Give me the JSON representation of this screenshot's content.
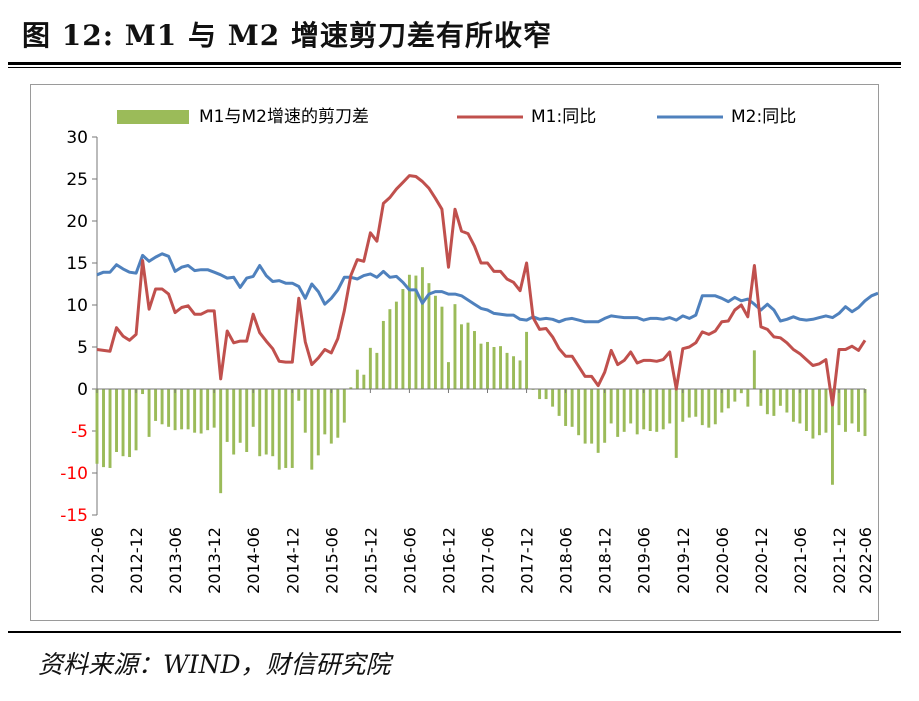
{
  "figure": {
    "title": "图 12:  M1 与 M2 增速剪刀差有所收窄",
    "source": "资料来源：WIND，财信研究院"
  },
  "colors": {
    "m1": "#c0504d",
    "m2": "#4f81bd",
    "gap": "#9bbb59",
    "axis": "#777777",
    "negative_tick": "#ff0000"
  },
  "chart_data": {
    "type": "bar+line",
    "title": "",
    "xlabel": "",
    "ylabel": "",
    "ylim": [
      -15,
      30
    ],
    "yticks": [
      30,
      25,
      20,
      15,
      10,
      5,
      0,
      -5,
      -10,
      -15
    ],
    "legend": "top",
    "legend_labels": {
      "gap": "M1与M2增速的剪刀差",
      "m1": "M1:同比",
      "m2": "M2:同比"
    },
    "x_start": "2012-06",
    "x_tick_labels": [
      "2012-06",
      "2012-12",
      "2013-06",
      "2013-12",
      "2014-06",
      "2014-12",
      "2015-06",
      "2015-12",
      "2016-06",
      "2016-12",
      "2017-06",
      "2017-12",
      "2018-06",
      "2018-12",
      "2019-06",
      "2019-12",
      "2020-06",
      "2020-12",
      "2021-06",
      "2021-12",
      "2022-06"
    ],
    "m1": [
      4.7,
      4.6,
      4.5,
      7.3,
      6.3,
      5.8,
      6.5,
      15.3,
      9.5,
      11.9,
      11.9,
      11.3,
      9.1,
      9.7,
      9.9,
      8.9,
      8.9,
      9.3,
      9.3,
      1.2,
      6.9,
      5.5,
      5.7,
      5.7,
      8.9,
      6.7,
      5.7,
      4.8,
      3.3,
      3.2,
      3.2,
      10.8,
      5.6,
      2.9,
      3.7,
      4.7,
      4.3,
      6.0,
      9.3,
      13.5,
      15.4,
      15.2,
      18.6,
      17.6,
      22.1,
      22.8,
      23.8,
      24.6,
      25.4,
      25.3,
      24.7,
      23.9,
      22.7,
      21.4,
      14.5,
      21.4,
      18.8,
      18.5,
      17.0,
      15.0,
      15.0,
      14.0,
      14.0,
      13.1,
      12.7,
      11.7,
      15.0,
      8.5,
      7.1,
      7.2,
      6.2,
      4.8,
      3.9,
      3.9,
      2.7,
      1.5,
      1.5,
      0.4,
      2.0,
      4.6,
      2.9,
      3.4,
      4.4,
      3.1,
      3.4,
      3.4,
      3.3,
      3.5,
      4.4,
      0.0,
      4.8,
      5.0,
      5.5,
      6.8,
      6.5,
      6.9,
      8.0,
      8.1,
      9.4,
      10.0,
      8.6,
      14.7,
      7.4,
      7.1,
      6.2,
      6.1,
      5.5,
      4.7,
      4.2,
      3.5,
      2.8,
      3.0,
      3.5,
      -1.9,
      4.7,
      4.7,
      5.1,
      4.6,
      5.8
    ],
    "m2": [
      13.6,
      13.9,
      13.9,
      14.8,
      14.3,
      13.9,
      13.8,
      15.9,
      15.2,
      15.7,
      16.1,
      15.8,
      14.0,
      14.5,
      14.7,
      14.1,
      14.2,
      14.2,
      13.9,
      13.6,
      13.2,
      13.3,
      12.1,
      13.2,
      13.4,
      14.7,
      13.5,
      12.8,
      12.9,
      12.6,
      12.6,
      12.2,
      10.8,
      12.5,
      11.6,
      10.1,
      10.8,
      11.8,
      13.3,
      13.3,
      13.1,
      13.5,
      13.7,
      13.3,
      14.0,
      13.3,
      13.4,
      12.7,
      11.8,
      11.8,
      10.2,
      11.3,
      11.6,
      11.6,
      11.3,
      11.3,
      11.1,
      10.6,
      10.1,
      9.6,
      9.4,
      9.0,
      8.9,
      8.8,
      8.8,
      8.3,
      8.2,
      8.6,
      8.3,
      8.4,
      8.3,
      8.0,
      8.3,
      8.4,
      8.2,
      8.0,
      8.0,
      8.0,
      8.4,
      8.7,
      8.6,
      8.5,
      8.5,
      8.5,
      8.2,
      8.4,
      8.4,
      8.3,
      8.5,
      8.2,
      8.7,
      8.4,
      8.8,
      11.1,
      11.1,
      11.1,
      10.8,
      10.4,
      10.9,
      10.5,
      10.7,
      10.1,
      9.4,
      10.1,
      9.4,
      8.1,
      8.3,
      8.6,
      8.3,
      8.2,
      8.3,
      8.5,
      8.7,
      8.5,
      9.0,
      9.8,
      9.2,
      9.7,
      10.5,
      11.1,
      11.4
    ],
    "gap": [
      -8.9,
      -9.3,
      -9.4,
      -7.5,
      -8.0,
      -8.1,
      -7.3,
      -0.6,
      -5.7,
      -3.8,
      -4.2,
      -4.5,
      -4.9,
      -4.8,
      -4.8,
      -5.2,
      -5.3,
      -4.9,
      -4.6,
      -12.4,
      -6.3,
      -7.8,
      -6.4,
      -7.5,
      -4.5,
      -8.0,
      -7.8,
      -8.0,
      -9.6,
      -9.4,
      -9.4,
      -1.4,
      -5.2,
      -9.6,
      -7.9,
      -5.4,
      -6.5,
      -5.8,
      -4.0,
      0.2,
      2.3,
      1.7,
      4.9,
      4.3,
      8.1,
      9.5,
      10.4,
      11.9,
      13.6,
      13.5,
      14.5,
      12.6,
      11.1,
      9.8,
      3.2,
      10.1,
      7.7,
      7.9,
      6.9,
      5.4,
      5.6,
      5.0,
      5.1,
      4.3,
      3.9,
      3.4,
      6.8,
      -0.1,
      -1.2,
      -1.2,
      -2.1,
      -3.2,
      -4.4,
      -4.5,
      -5.5,
      -6.5,
      -6.5,
      -7.6,
      -6.4,
      -4.1,
      -5.7,
      -5.1,
      -4.1,
      -5.4,
      -4.8,
      -5.0,
      -5.1,
      -4.8,
      -4.1,
      -8.2,
      -3.9,
      -3.4,
      -3.3,
      -4.3,
      -4.6,
      -4.2,
      -2.8,
      -2.3,
      -1.5,
      -0.5,
      -2.1,
      4.6,
      -2.0,
      -3.0,
      -3.2,
      -2.0,
      -2.8,
      -3.9,
      -4.1,
      -5.0,
      -5.9,
      -5.5,
      -5.2,
      -11.4,
      -4.3,
      -5.1,
      -4.1,
      -5.1,
      -5.6
    ]
  }
}
